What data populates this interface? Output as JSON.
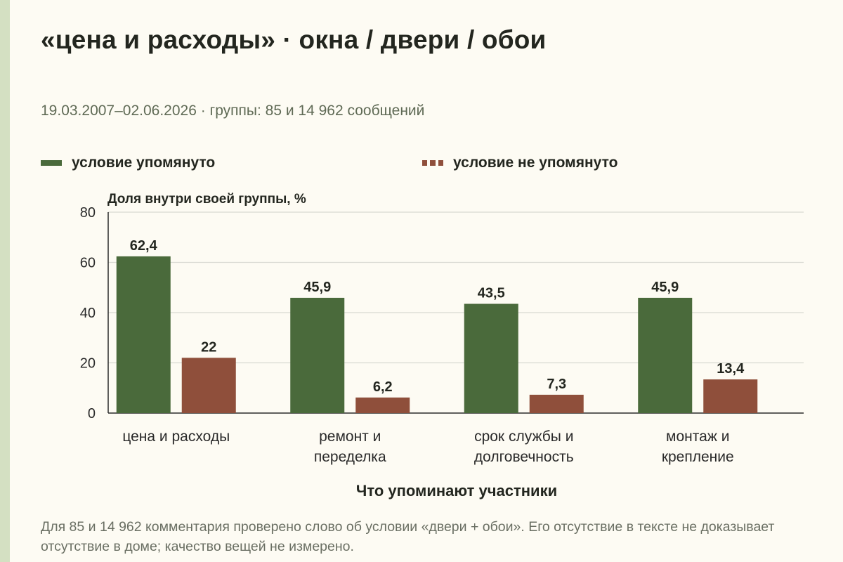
{
  "title": "«цена и расходы» · окна / двери / обои",
  "subtitle": "19.03.2007–02.06.2026 · группы: 85 и 14 962 сообщений",
  "colors": {
    "mentioned": "#4a6a3b",
    "not_mentioned": "#8f4f3b",
    "grid": "#d9d9d2",
    "axis": "#2a2a2a"
  },
  "legend": [
    {
      "label": "условие упомянуто",
      "style": "solid"
    },
    {
      "label": "условие не упомянуто",
      "style": "dashed"
    }
  ],
  "chart_data": {
    "type": "bar",
    "y_title": "Доля внутри своей группы, %",
    "x_title": "Что упоминают участники",
    "ylim": [
      0,
      80
    ],
    "yticks": [
      0,
      20,
      40,
      60,
      80
    ],
    "grid": true,
    "legend_position": "top",
    "categories": [
      [
        "цена и расходы"
      ],
      [
        "ремонт и",
        "переделка"
      ],
      [
        "срок службы и",
        "долговечность"
      ],
      [
        "монтаж и",
        "крепление"
      ]
    ],
    "series": [
      {
        "name": "условие упомянуто",
        "values": [
          62.4,
          45.9,
          43.5,
          45.9
        ],
        "labels": [
          "62,4",
          "45,9",
          "43,5",
          "45,9"
        ]
      },
      {
        "name": "условие не упомянуто",
        "values": [
          22,
          6.2,
          7.3,
          13.4
        ],
        "labels": [
          "22",
          "6,2",
          "7,3",
          "13,4"
        ]
      }
    ]
  },
  "note": "Для 85 и 14 962 комментария проверено слово об условии «двери + обои». Его отсутствие в тексте не доказывает отсутствие в доме; качество вещей не измерено."
}
